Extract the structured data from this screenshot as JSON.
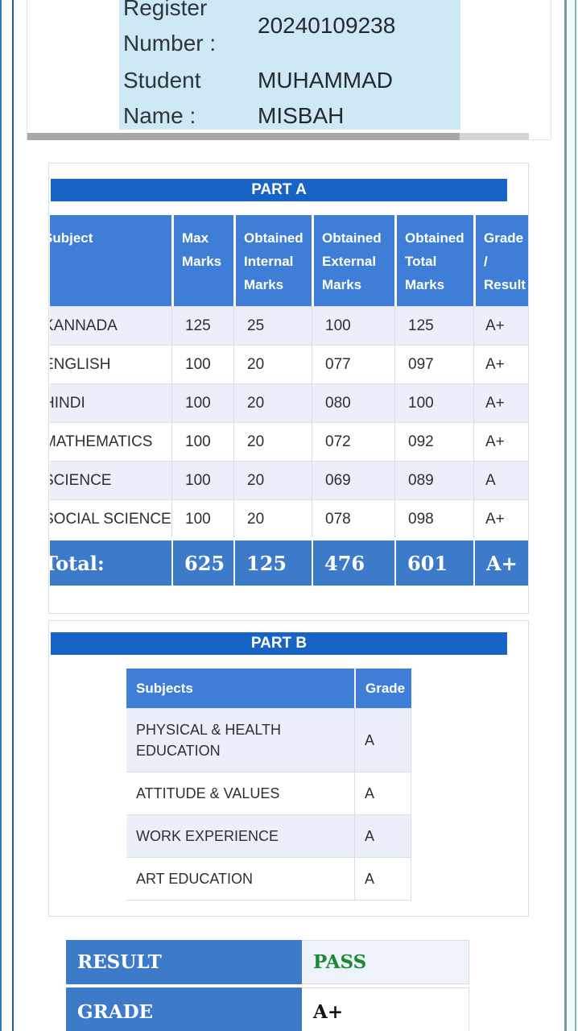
{
  "student_info": {
    "fields": [
      {
        "label": "Register Number :",
        "value": "20240109238"
      },
      {
        "label": "Student Name :",
        "value": "MUHAMMAD MISBAH"
      }
    ]
  },
  "part_a": {
    "title": "PART A",
    "columns": [
      "Subject",
      "Max Marks",
      "Obtained Internal Marks",
      "Obtained External Marks",
      "Obtained Total Marks",
      "Grade / Result"
    ],
    "rows": [
      [
        "KANNADA",
        "125",
        "25",
        "100",
        "125",
        "A+"
      ],
      [
        "ENGLISH",
        "100",
        "20",
        "077",
        "097",
        "A+"
      ],
      [
        "HINDI",
        "100",
        "20",
        "080",
        "100",
        "A+"
      ],
      [
        "MATHEMATICS",
        "100",
        "20",
        "072",
        "092",
        "A+"
      ],
      [
        "SCIENCE",
        "100",
        "20",
        "069",
        "089",
        "A"
      ],
      [
        "SOCIAL SCIENCE",
        "100",
        "20",
        "078",
        "098",
        "A+"
      ]
    ],
    "total_row": [
      "Total:",
      "625",
      "125",
      "476",
      "601",
      "A+"
    ]
  },
  "part_b": {
    "title": "PART B",
    "columns": [
      "Subjects",
      "Grade"
    ],
    "rows": [
      [
        "PHYSICAL & HEALTH EDUCATION",
        "A"
      ],
      [
        "ATTITUDE & VALUES",
        "A"
      ],
      [
        "WORK EXPERIENCE",
        "A"
      ],
      [
        "ART EDUCATION",
        "A"
      ]
    ]
  },
  "summary": {
    "result_label": "RESULT",
    "result_value": "PASS",
    "grade_label": "GRADE",
    "grade_value": "A+"
  },
  "colors": {
    "banner_blue": "#1763c6",
    "header_blue": "#3e7ed6",
    "accent_blue": "#3d7bca",
    "row_alt": "#eaeffa",
    "info_bg": "#cde9f5",
    "pass_green": "#1a8a2f"
  }
}
